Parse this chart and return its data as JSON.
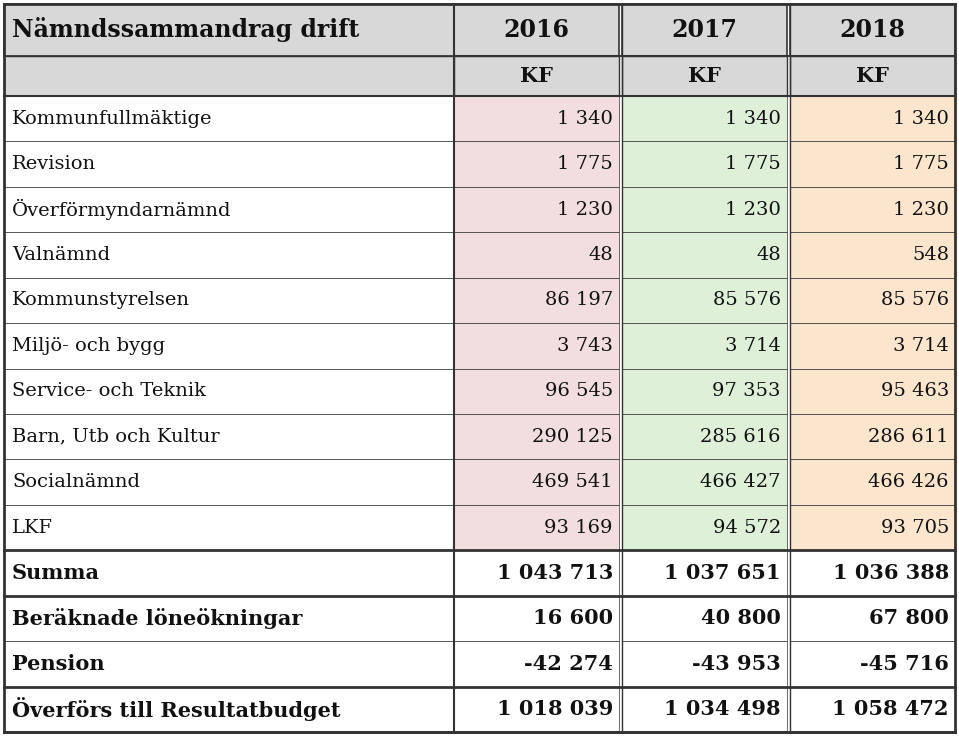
{
  "title": "Nämndssammandrag drift",
  "col_years": [
    "2016",
    "2017",
    "2018"
  ],
  "rows": [
    {
      "label": "Kommunfullmäktige",
      "vals": [
        "1 340",
        "1 340",
        "1 340"
      ],
      "bold": false,
      "bg": true
    },
    {
      "label": "Revision",
      "vals": [
        "1 775",
        "1 775",
        "1 775"
      ],
      "bold": false,
      "bg": true
    },
    {
      "label": "Överförmyndarnämnd",
      "vals": [
        "1 230",
        "1 230",
        "1 230"
      ],
      "bold": false,
      "bg": true
    },
    {
      "label": "Valnämnd",
      "vals": [
        "48",
        "48",
        "548"
      ],
      "bold": false,
      "bg": true
    },
    {
      "label": "Kommunstyrelsen",
      "vals": [
        "86 197",
        "85 576",
        "85 576"
      ],
      "bold": false,
      "bg": true
    },
    {
      "label": "Miljö- och bygg",
      "vals": [
        "3 743",
        "3 714",
        "3 714"
      ],
      "bold": false,
      "bg": true
    },
    {
      "label": "Service- och Teknik",
      "vals": [
        "96 545",
        "97 353",
        "95 463"
      ],
      "bold": false,
      "bg": true
    },
    {
      "label": "Barn, Utb och Kultur",
      "vals": [
        "290 125",
        "285 616",
        "286 611"
      ],
      "bold": false,
      "bg": true
    },
    {
      "label": "Socialnämnd",
      "vals": [
        "469 541",
        "466 427",
        "466 426"
      ],
      "bold": false,
      "bg": true
    },
    {
      "label": "LKF",
      "vals": [
        "93 169",
        "94 572",
        "93 705"
      ],
      "bold": false,
      "bg": true
    },
    {
      "label": "Summa",
      "vals": [
        "1 043 713",
        "1 037 651",
        "1 036 388"
      ],
      "bold": true,
      "bg": false,
      "thick_top": true,
      "thick_bot": true
    },
    {
      "label": "Beräknade löneökningar",
      "vals": [
        "16 600",
        "40 800",
        "67 800"
      ],
      "bold": true,
      "bg": false,
      "thick_top": false,
      "thick_bot": false
    },
    {
      "label": "Pension",
      "vals": [
        "-42 274",
        "-43 953",
        "-45 716"
      ],
      "bold": true,
      "bg": false,
      "thick_top": false,
      "thick_bot": false
    },
    {
      "label": "Överförs till Resultatbudget",
      "vals": [
        "1 018 039",
        "1 034 498",
        "1 058 472"
      ],
      "bold": true,
      "bg": false,
      "thick_top": true,
      "thick_bot": true
    }
  ],
  "col_colors": [
    "#f2dede",
    "#dff0d8",
    "#fce5cd"
  ],
  "header_color": "#d8d8d8",
  "title_bg": "#d8d8d8",
  "border_color": "#333333",
  "text_color": "#111111",
  "fig_bg": "#ffffff"
}
